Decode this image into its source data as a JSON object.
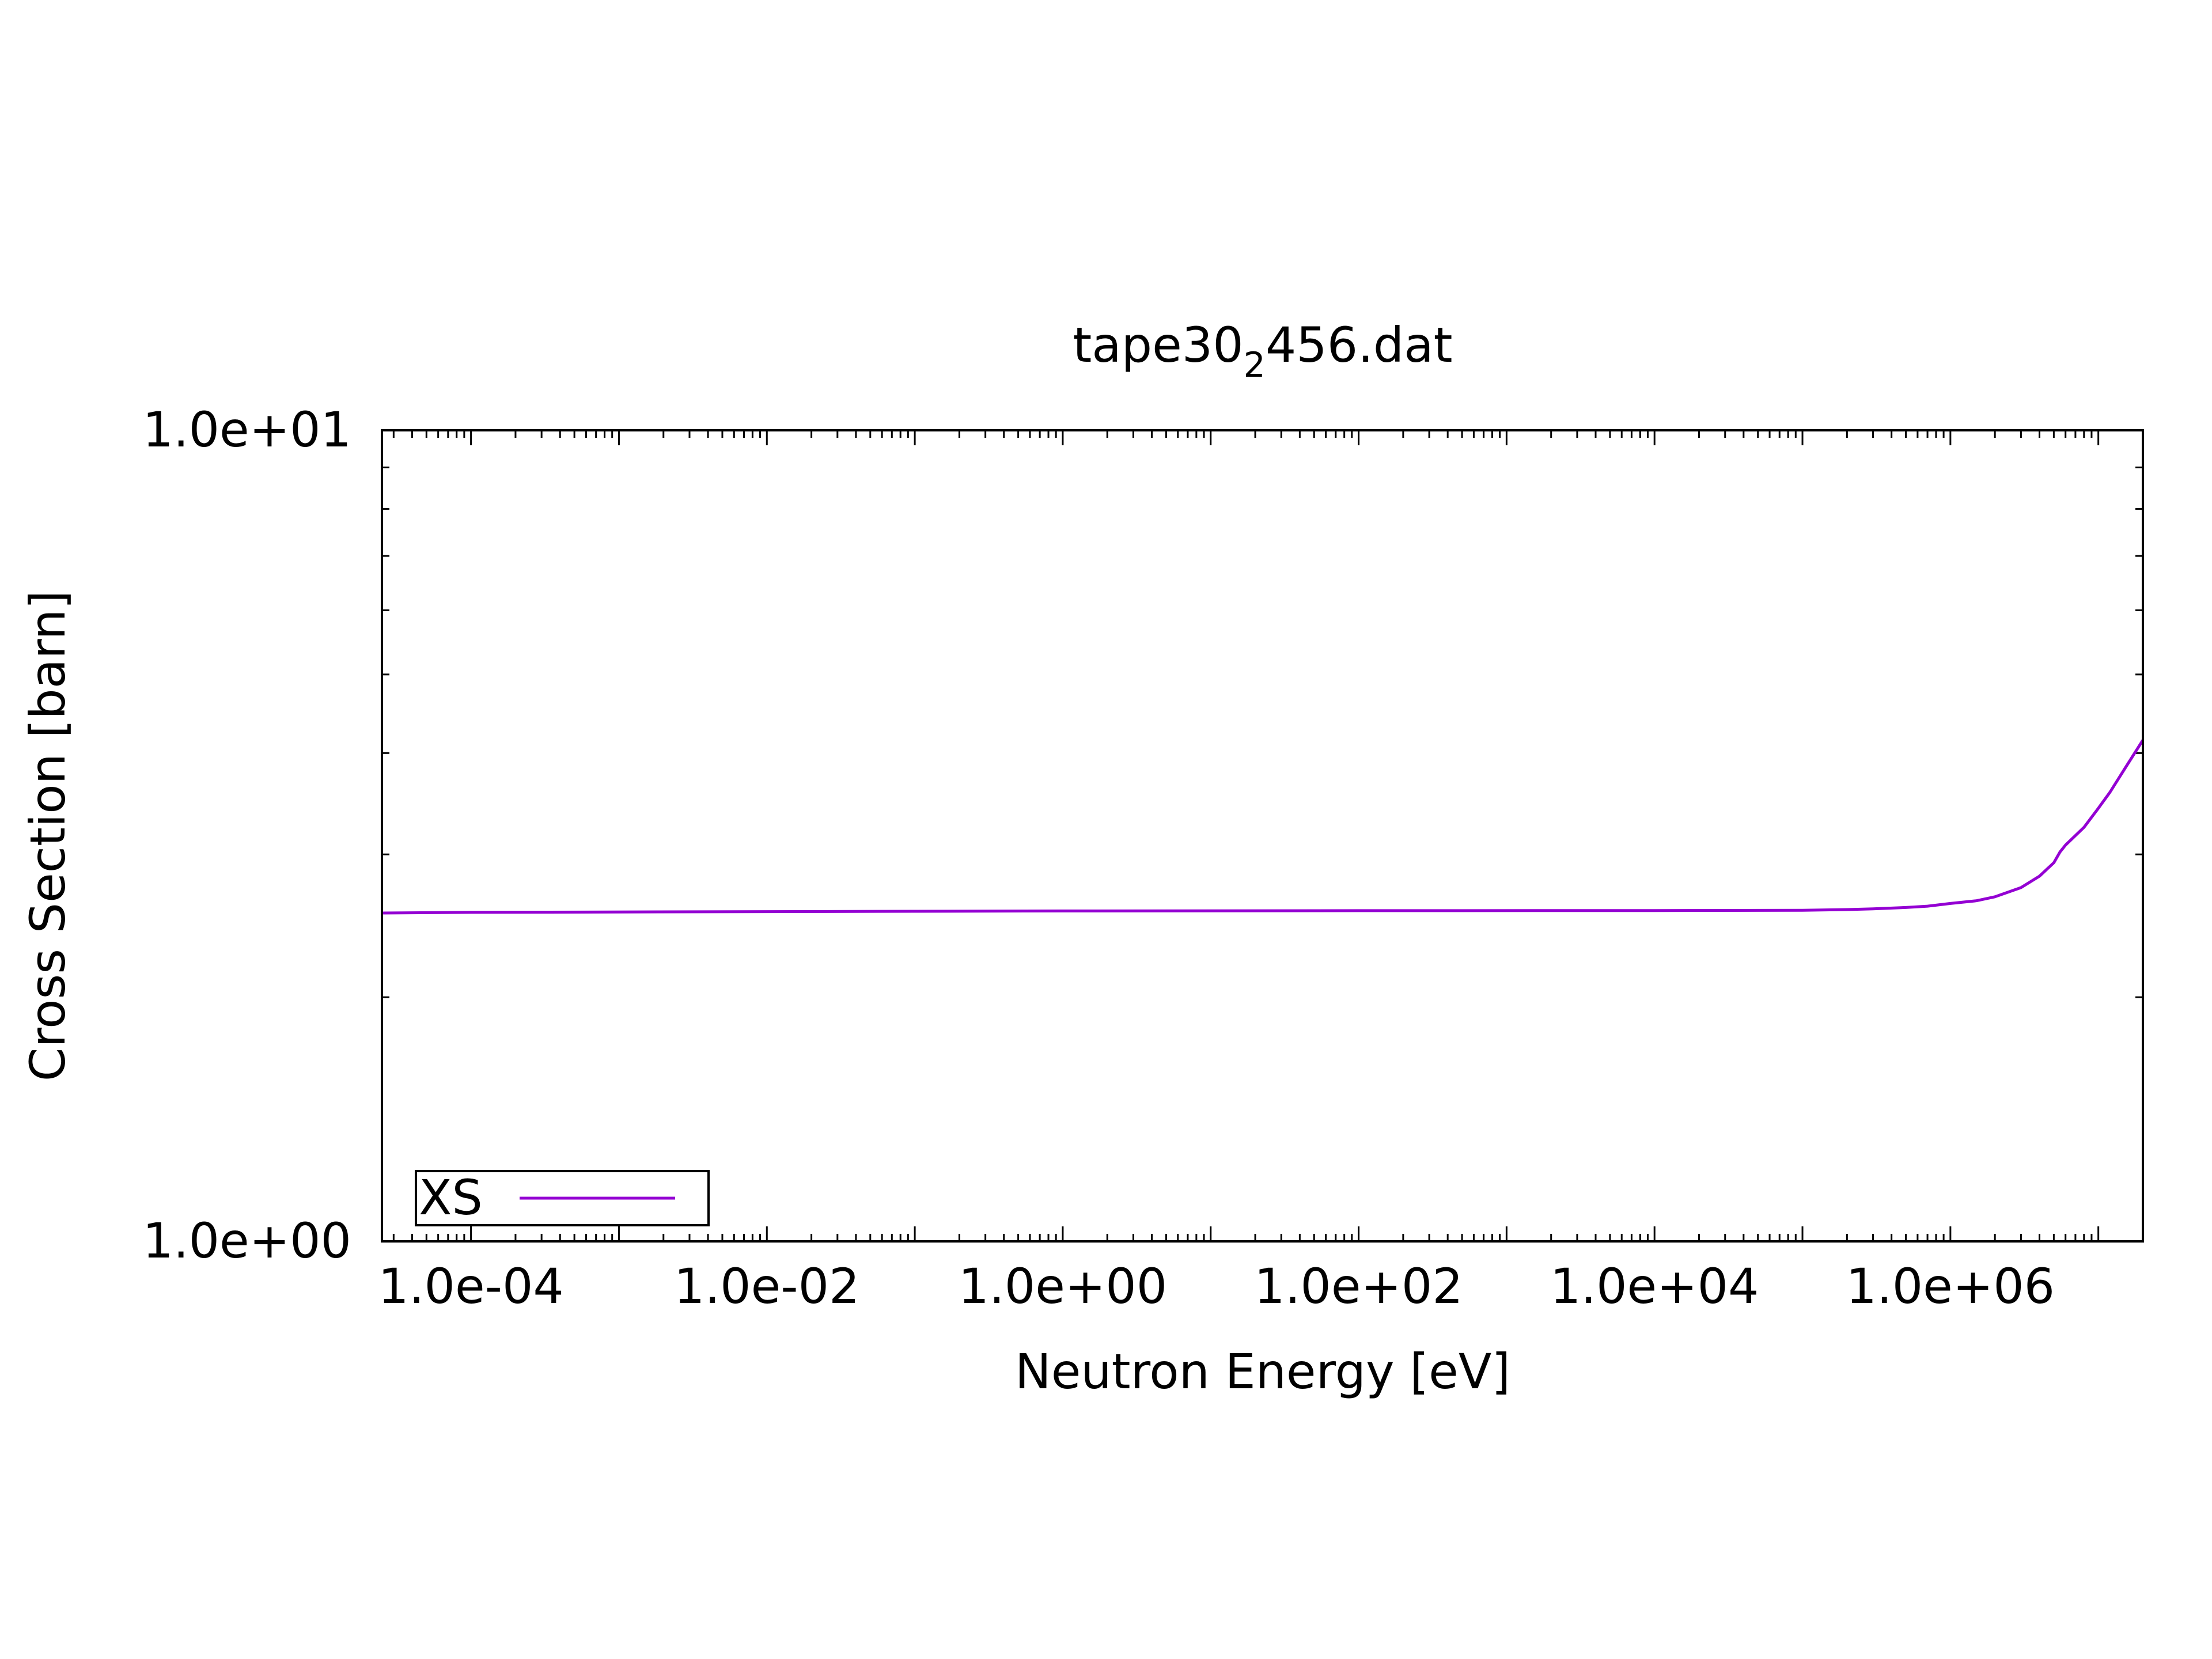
{
  "chart_data": {
    "type": "line",
    "title_main": "tape30",
    "title_sub": "2",
    "title_tail": "456.dat",
    "xlabel": "Neutron Energy [eV]",
    "ylabel": "Cross Section [barn]",
    "xscale": "log",
    "yscale": "log",
    "xlim": [
      2.5e-05,
      20000000.0
    ],
    "ylim": [
      1.0,
      10.0
    ],
    "xticks": [
      {
        "value": 0.0001,
        "label": "1.0e-04"
      },
      {
        "value": 0.01,
        "label": "1.0e-02"
      },
      {
        "value": 1,
        "label": "1.0e+00"
      },
      {
        "value": 100,
        "label": "1.0e+02"
      },
      {
        "value": 10000,
        "label": "1.0e+04"
      },
      {
        "value": 1000000,
        "label": "1.0e+06"
      }
    ],
    "yticks": [
      {
        "value": 1,
        "label": "1.0e+00"
      },
      {
        "value": 10,
        "label": "1.0e+01"
      }
    ],
    "grid": false,
    "legend_position": "bottom-left",
    "series": [
      {
        "name": "XS",
        "color": "#9400d3",
        "x": [
          2.5e-05,
          0.0001,
          0.01,
          1,
          100,
          10000,
          100000,
          200000,
          300000,
          500000,
          700000,
          1000000,
          1500000,
          2000000,
          3000000,
          4000000,
          5000000,
          5500000,
          6000000,
          8000000,
          10000000,
          12000000,
          15000000,
          20000000
        ],
        "y": [
          2.54,
          2.545,
          2.55,
          2.555,
          2.557,
          2.558,
          2.56,
          2.565,
          2.57,
          2.58,
          2.59,
          2.61,
          2.63,
          2.66,
          2.73,
          2.82,
          2.93,
          3.02,
          3.08,
          3.24,
          3.42,
          3.58,
          3.82,
          4.15
        ]
      }
    ]
  }
}
